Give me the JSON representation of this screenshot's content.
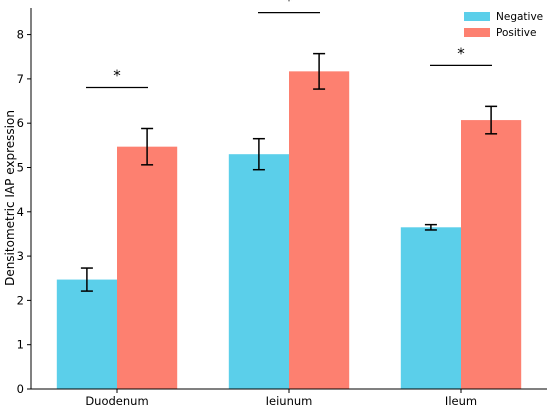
{
  "chart_data": {
    "type": "bar",
    "title": "",
    "xlabel": "",
    "ylabel": "Densitometric IAP expression",
    "categories": [
      "Duodenum",
      "Jejunum",
      "Ileum"
    ],
    "series": [
      {
        "name": "Negative",
        "color": "#5bcfea",
        "values": [
          2.47,
          5.3,
          3.65
        ],
        "errors": [
          0.26,
          0.35,
          0.06
        ]
      },
      {
        "name": "Positive",
        "color": "#fd8070",
        "values": [
          5.47,
          7.17,
          6.07
        ],
        "errors": [
          0.41,
          0.4,
          0.31
        ]
      }
    ],
    "significance": [
      {
        "category": "Duodenum",
        "label": "*"
      },
      {
        "category": "Jejunum",
        "label": "*"
      },
      {
        "category": "Ileum",
        "label": "*"
      }
    ],
    "ylim": [
      0,
      8.6
    ],
    "yticks": [
      0,
      1,
      2,
      3,
      4,
      5,
      6,
      7,
      8
    ],
    "grid": false,
    "legend": {
      "position": "top-right"
    }
  }
}
